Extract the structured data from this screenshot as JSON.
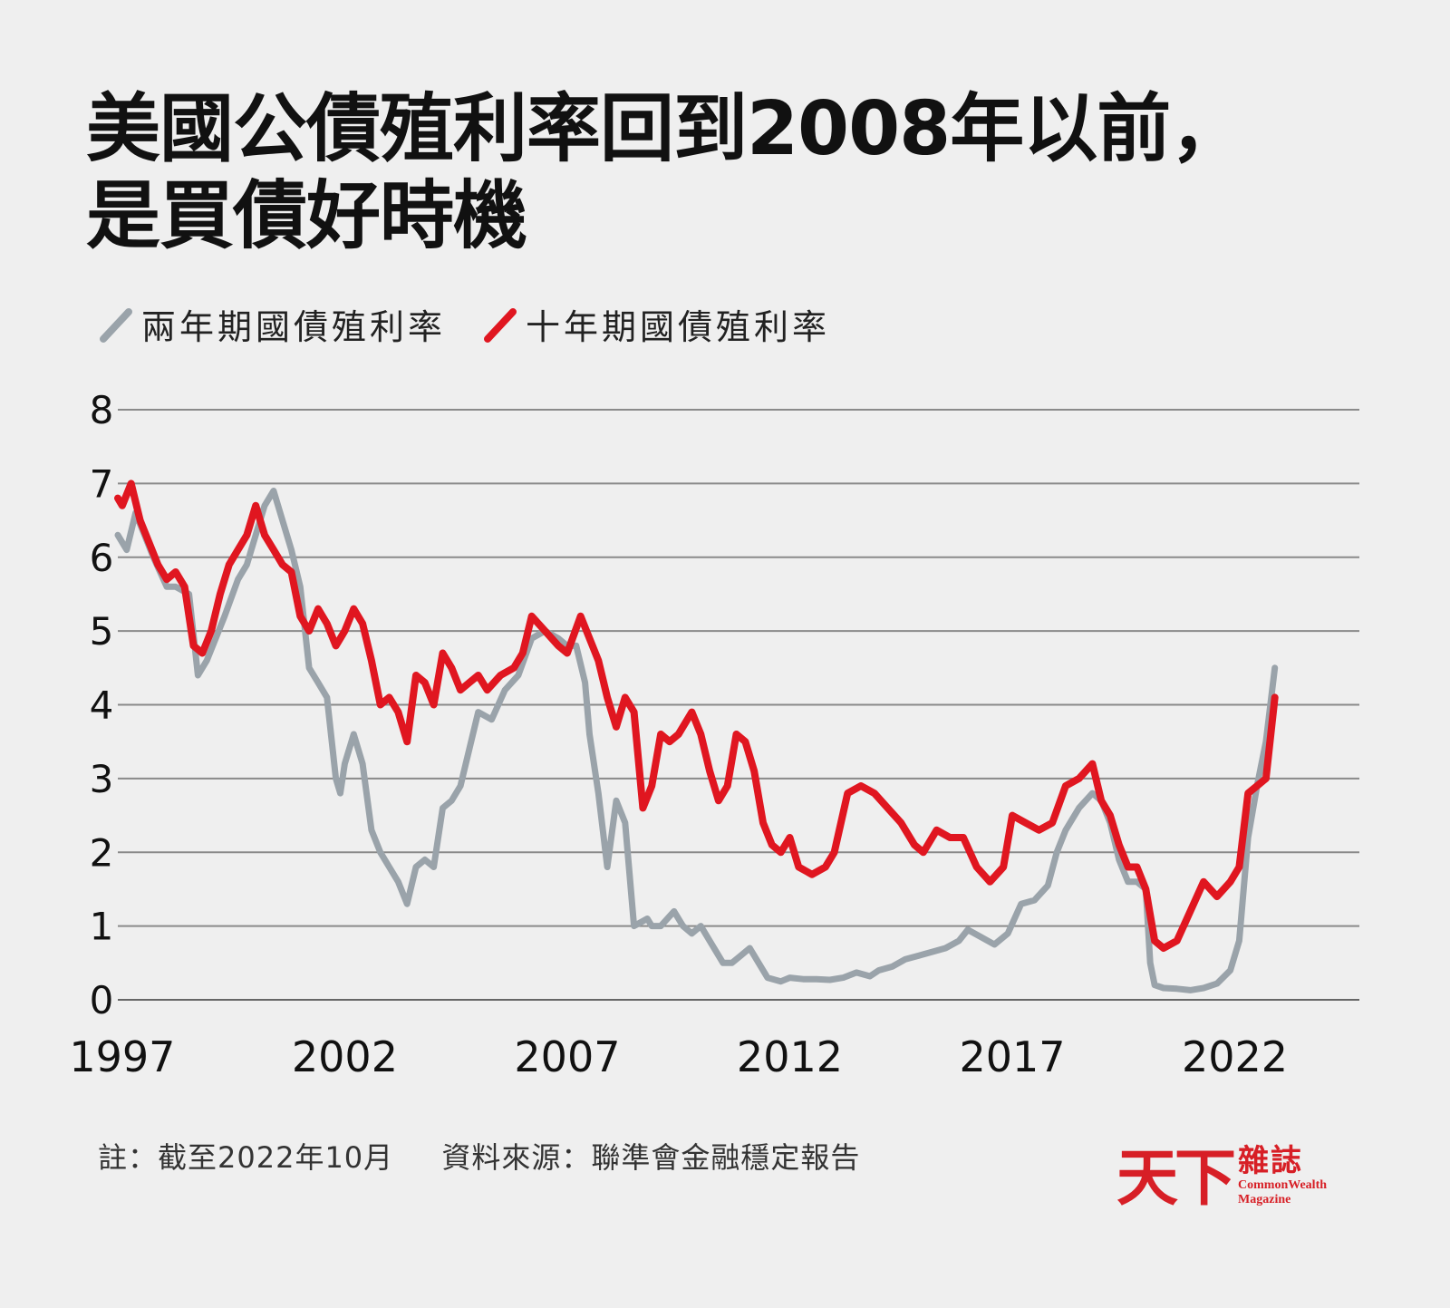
{
  "title": {
    "line1": "美國公債殖利率回到2008年以前，",
    "line2": "是買債好時機"
  },
  "legend": [
    {
      "label": "兩年期國債殖利率",
      "color": "#9aa3aa"
    },
    {
      "label": "十年期國債殖利率",
      "color": "#e01620"
    }
  ],
  "note": {
    "cutoff": "註：截至2022年10月",
    "source": "資料來源：聯準會金融穩定報告"
  },
  "logo": {
    "main": "天下",
    "cn": "雜誌",
    "en_line1": "CommonWealth",
    "en_line2": "Magazine"
  },
  "chart_data": {
    "type": "line",
    "ylim": [
      0,
      8
    ],
    "yticks": [
      0,
      1,
      2,
      3,
      4,
      5,
      6,
      7,
      8
    ],
    "xlim": [
      1996.9,
      2024.8
    ],
    "xticks": [
      1997,
      2002,
      2007,
      2012,
      2017,
      2022
    ],
    "grid": "horizontal",
    "legend_position": "top-left",
    "series": [
      {
        "name": "兩年期國債殖利率",
        "color": "#9aa3aa",
        "x": [
          1996.9,
          1997.1,
          1997.3,
          1997.5,
          1997.7,
          1998.0,
          1998.2,
          1998.5,
          1998.7,
          1998.9,
          1999.1,
          1999.3,
          1999.6,
          1999.8,
          2000.0,
          2000.2,
          2000.4,
          2000.6,
          2000.8,
          2001.0,
          2001.2,
          2001.4,
          2001.6,
          2001.8,
          2001.9,
          2002.0,
          2002.2,
          2002.4,
          2002.6,
          2002.8,
          2003.0,
          2003.2,
          2003.4,
          2003.6,
          2003.8,
          2004.0,
          2004.2,
          2004.4,
          2004.6,
          2004.8,
          2005.0,
          2005.3,
          2005.6,
          2005.9,
          2006.2,
          2006.5,
          2006.8,
          2007.0,
          2007.2,
          2007.4,
          2007.5,
          2007.7,
          2007.9,
          2008.1,
          2008.3,
          2008.5,
          2008.8,
          2008.9,
          2009.1,
          2009.4,
          2009.6,
          2009.8,
          2010.0,
          2010.2,
          2010.5,
          2010.7,
          2010.9,
          2011.1,
          2011.3,
          2011.5,
          2011.8,
          2012.0,
          2012.3,
          2012.6,
          2012.9,
          2013.2,
          2013.5,
          2013.8,
          2014.0,
          2014.3,
          2014.6,
          2014.9,
          2015.2,
          2015.5,
          2015.8,
          2016.0,
          2016.3,
          2016.6,
          2016.9,
          2017.2,
          2017.5,
          2017.8,
          2018.0,
          2018.2,
          2018.5,
          2018.8,
          2019.0,
          2019.2,
          2019.4,
          2019.6,
          2019.8,
          2020.0,
          2020.1,
          2020.2,
          2020.4,
          2020.7,
          2021.0,
          2021.3,
          2021.6,
          2021.9,
          2022.1,
          2022.3,
          2022.5,
          2022.7,
          2022.9
        ],
        "y": [
          6.3,
          6.1,
          6.6,
          6.3,
          6.0,
          5.6,
          5.6,
          5.5,
          4.4,
          4.6,
          4.9,
          5.2,
          5.7,
          5.9,
          6.3,
          6.7,
          6.9,
          6.5,
          6.1,
          5.6,
          4.5,
          4.3,
          4.1,
          3.0,
          2.8,
          3.2,
          3.6,
          3.2,
          2.3,
          2.0,
          1.8,
          1.6,
          1.3,
          1.8,
          1.9,
          1.8,
          2.6,
          2.7,
          2.9,
          3.4,
          3.9,
          3.8,
          4.2,
          4.4,
          4.9,
          5.0,
          4.9,
          4.8,
          4.8,
          4.3,
          3.6,
          2.8,
          1.8,
          2.7,
          2.4,
          1.0,
          1.1,
          1.0,
          1.0,
          1.2,
          1.0,
          0.9,
          1.0,
          0.8,
          0.5,
          0.5,
          0.6,
          0.7,
          0.5,
          0.3,
          0.25,
          0.3,
          0.28,
          0.28,
          0.27,
          0.3,
          0.37,
          0.32,
          0.4,
          0.45,
          0.55,
          0.6,
          0.65,
          0.7,
          0.8,
          0.95,
          0.85,
          0.75,
          0.9,
          1.3,
          1.35,
          1.55,
          2.0,
          2.3,
          2.6,
          2.8,
          2.7,
          2.4,
          1.9,
          1.6,
          1.6,
          1.5,
          0.5,
          0.2,
          0.16,
          0.15,
          0.13,
          0.16,
          0.22,
          0.4,
          0.8,
          2.2,
          2.9,
          3.5,
          4.5
        ]
      },
      {
        "name": "十年期國債殖利率",
        "color": "#e01620",
        "x": [
          1996.9,
          1997.0,
          1997.2,
          1997.4,
          1997.6,
          1997.8,
          1998.0,
          1998.2,
          1998.4,
          1998.6,
          1998.8,
          1999.0,
          1999.2,
          1999.4,
          1999.6,
          1999.8,
          2000.0,
          2000.2,
          2000.4,
          2000.6,
          2000.8,
          2001.0,
          2001.2,
          2001.4,
          2001.6,
          2001.8,
          2002.0,
          2002.2,
          2002.4,
          2002.6,
          2002.8,
          2003.0,
          2003.2,
          2003.4,
          2003.6,
          2003.8,
          2004.0,
          2004.2,
          2004.4,
          2004.6,
          2004.8,
          2005.0,
          2005.2,
          2005.5,
          2005.8,
          2006.0,
          2006.2,
          2006.5,
          2006.8,
          2007.0,
          2007.3,
          2007.5,
          2007.7,
          2007.9,
          2008.1,
          2008.3,
          2008.5,
          2008.7,
          2008.9,
          2009.1,
          2009.3,
          2009.5,
          2009.8,
          2010.0,
          2010.2,
          2010.4,
          2010.6,
          2010.8,
          2011.0,
          2011.2,
          2011.4,
          2011.6,
          2011.8,
          2012.0,
          2012.2,
          2012.5,
          2012.8,
          2013.0,
          2013.3,
          2013.6,
          2013.9,
          2014.2,
          2014.5,
          2014.8,
          2015.0,
          2015.3,
          2015.6,
          2015.9,
          2016.2,
          2016.5,
          2016.8,
          2017.0,
          2017.3,
          2017.6,
          2017.9,
          2018.2,
          2018.5,
          2018.8,
          2019.0,
          2019.2,
          2019.4,
          2019.6,
          2019.8,
          2020.0,
          2020.2,
          2020.4,
          2020.7,
          2021.0,
          2021.3,
          2021.6,
          2021.9,
          2022.1,
          2022.3,
          2022.5,
          2022.7,
          2022.9
        ],
        "y": [
          6.8,
          6.7,
          7.0,
          6.5,
          6.2,
          5.9,
          5.7,
          5.8,
          5.6,
          4.8,
          4.7,
          5.0,
          5.5,
          5.9,
          6.1,
          6.3,
          6.7,
          6.3,
          6.1,
          5.9,
          5.8,
          5.2,
          5.0,
          5.3,
          5.1,
          4.8,
          5.0,
          5.3,
          5.1,
          4.6,
          4.0,
          4.1,
          3.9,
          3.5,
          4.4,
          4.3,
          4.0,
          4.7,
          4.5,
          4.2,
          4.3,
          4.4,
          4.2,
          4.4,
          4.5,
          4.7,
          5.2,
          5.0,
          4.8,
          4.7,
          5.2,
          4.9,
          4.6,
          4.1,
          3.7,
          4.1,
          3.9,
          2.6,
          2.9,
          3.6,
          3.5,
          3.6,
          3.9,
          3.6,
          3.1,
          2.7,
          2.9,
          3.6,
          3.5,
          3.1,
          2.4,
          2.1,
          2.0,
          2.2,
          1.8,
          1.7,
          1.8,
          2.0,
          2.8,
          2.9,
          2.8,
          2.6,
          2.4,
          2.1,
          2.0,
          2.3,
          2.2,
          2.2,
          1.8,
          1.6,
          1.8,
          2.5,
          2.4,
          2.3,
          2.4,
          2.9,
          3.0,
          3.2,
          2.7,
          2.5,
          2.1,
          1.8,
          1.8,
          1.5,
          0.8,
          0.7,
          0.8,
          1.2,
          1.6,
          1.4,
          1.6,
          1.8,
          2.8,
          2.9,
          3.0,
          4.1
        ]
      }
    ]
  }
}
